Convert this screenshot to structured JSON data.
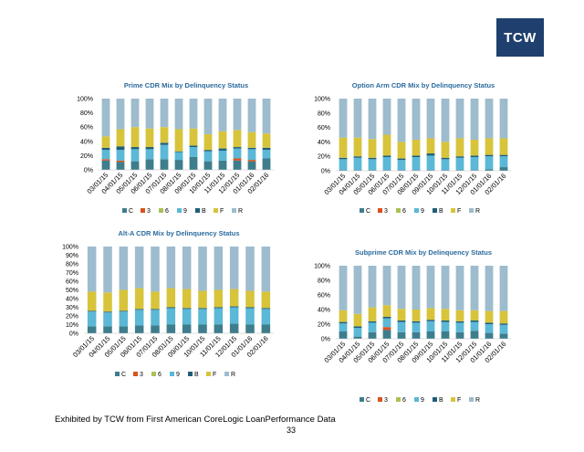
{
  "logo": "TCW",
  "footer": "Exhibited by TCW from First American CoreLogic LoanPerformance Data",
  "page_number": "33",
  "colors": {
    "C": "#3e7d8c",
    "3": "#d9531e",
    "6": "#a9c255",
    "9": "#5bb8d6",
    "B": "#1e5e78",
    "F": "#d7c43b",
    "R": "#9dbccd",
    "title": "#2b6b9e"
  },
  "chart_data": [
    {
      "type": "bar",
      "stacked": true,
      "title": "Prime CDR Mix by Delinquency Status",
      "categories": [
        "03/01/15",
        "04/01/15",
        "05/01/15",
        "06/01/15",
        "07/01/15",
        "08/01/15",
        "09/01/15",
        "10/01/15",
        "11/01/15",
        "12/01/15",
        "01/01/16",
        "02/01/16"
      ],
      "ylim": [
        0,
        100
      ],
      "yticks": [
        "0%",
        "20%",
        "40%",
        "60%",
        "80%",
        "100%"
      ],
      "legend": [
        "C",
        "3",
        "6",
        "9",
        "B",
        "F",
        "R"
      ],
      "series": [
        {
          "name": "C",
          "values": [
            13,
            11,
            12,
            15,
            15,
            14,
            18,
            12,
            13,
            13,
            12,
            16
          ]
        },
        {
          "name": "3",
          "values": [
            2,
            2,
            0,
            0,
            0,
            0,
            0,
            0,
            0,
            3,
            2,
            0
          ]
        },
        {
          "name": "6",
          "values": [
            0,
            0,
            0,
            0,
            0,
            0,
            0,
            0,
            0,
            0,
            0,
            0
          ]
        },
        {
          "name": "9",
          "values": [
            13,
            15,
            17,
            14,
            20,
            11,
            14,
            14,
            14,
            14,
            15,
            12
          ]
        },
        {
          "name": "B",
          "values": [
            3,
            5,
            3,
            3,
            3,
            1,
            2,
            2,
            3,
            2,
            2,
            3
          ]
        },
        {
          "name": "F",
          "values": [
            16,
            24,
            28,
            26,
            22,
            31,
            24,
            22,
            24,
            24,
            22,
            20
          ]
        },
        {
          "name": "R",
          "values": [
            53,
            43,
            40,
            42,
            40,
            43,
            42,
            50,
            46,
            44,
            47,
            49
          ]
        }
      ]
    },
    {
      "type": "bar",
      "stacked": true,
      "title": "Option Arm CDR Mix by Delinquency Status",
      "categories": [
        "03/01/15",
        "04/01/15",
        "05/01/15",
        "06/01/15",
        "07/01/15",
        "08/01/15",
        "09/01/15",
        "10/01/15",
        "11/01/15",
        "12/01/15",
        "01/01/16",
        "02/01/16"
      ],
      "ylim": [
        0,
        100
      ],
      "yticks": [
        "0%",
        "20%",
        "40%",
        "60%",
        "80%",
        "100%"
      ],
      "legend": [
        "C",
        "3",
        "6",
        "9",
        "B",
        "F",
        "R"
      ],
      "series": [
        {
          "name": "C",
          "values": [
            1,
            1,
            1,
            1,
            1,
            1,
            1,
            1,
            1,
            1,
            2,
            5
          ]
        },
        {
          "name": "3",
          "values": [
            0,
            0,
            0,
            0,
            0,
            0,
            0,
            0,
            0,
            0,
            0,
            0
          ]
        },
        {
          "name": "6",
          "values": [
            0,
            0,
            0,
            0,
            0,
            0,
            0,
            0,
            0,
            0,
            0,
            0
          ]
        },
        {
          "name": "9",
          "values": [
            15,
            17,
            15,
            18,
            14,
            18,
            20,
            15,
            17,
            18,
            18,
            15
          ]
        },
        {
          "name": "B",
          "values": [
            2,
            2,
            2,
            2,
            2,
            2,
            3,
            2,
            2,
            2,
            2,
            2
          ]
        },
        {
          "name": "F",
          "values": [
            28,
            26,
            26,
            29,
            23,
            22,
            21,
            22,
            25,
            22,
            23,
            23
          ]
        },
        {
          "name": "R",
          "values": [
            54,
            54,
            56,
            50,
            60,
            57,
            55,
            60,
            55,
            57,
            55,
            55
          ]
        }
      ]
    },
    {
      "type": "bar",
      "stacked": true,
      "title": "Alt-A CDR Mix by Delinquency Status",
      "categories": [
        "03/01/15",
        "04/01/15",
        "05/01/15",
        "06/01/15",
        "07/01/15",
        "08/01/15",
        "09/01/15",
        "10/01/15",
        "11/01/15",
        "12/01/15",
        "01/01/16",
        "02/01/16"
      ],
      "ylim": [
        0,
        100
      ],
      "yticks": [
        "0%",
        "10%",
        "20%",
        "30%",
        "40%",
        "50%",
        "60%",
        "70%",
        "80%",
        "90%",
        "100%"
      ],
      "legend": [
        "C",
        "3",
        "6",
        "9",
        "B",
        "F",
        "R"
      ],
      "series": [
        {
          "name": "C",
          "values": [
            8,
            8,
            8,
            9,
            9,
            10,
            10,
            10,
            10,
            11,
            10,
            10
          ]
        },
        {
          "name": "3",
          "values": [
            0,
            0,
            0,
            0,
            0,
            0,
            0,
            0,
            0,
            0,
            0,
            0
          ]
        },
        {
          "name": "6",
          "values": [
            0,
            0,
            0,
            0,
            0,
            0,
            0,
            0,
            0,
            0,
            0,
            0
          ]
        },
        {
          "name": "9",
          "values": [
            17,
            16,
            17,
            18,
            18,
            19,
            18,
            18,
            19,
            19,
            19,
            18
          ]
        },
        {
          "name": "B",
          "values": [
            1,
            1,
            1,
            1,
            1,
            1,
            1,
            1,
            1,
            1,
            1,
            1
          ]
        },
        {
          "name": "F",
          "values": [
            22,
            22,
            24,
            24,
            20,
            22,
            22,
            20,
            20,
            20,
            19,
            19
          ]
        },
        {
          "name": "R",
          "values": [
            52,
            53,
            50,
            48,
            52,
            48,
            49,
            51,
            50,
            49,
            51,
            52
          ]
        }
      ]
    },
    {
      "type": "bar",
      "stacked": true,
      "title": "Subprime CDR Mix by Delinquency Status",
      "categories": [
        "03/01/15",
        "04/01/15",
        "05/01/15",
        "06/01/15",
        "07/01/15",
        "08/01/15",
        "09/01/15",
        "10/01/15",
        "11/01/15",
        "12/01/15",
        "01/01/16",
        "02/01/16"
      ],
      "ylim": [
        0,
        100
      ],
      "yticks": [
        "0%",
        "20%",
        "40%",
        "60%",
        "80%",
        "100%"
      ],
      "legend": [
        "C",
        "3",
        "6",
        "9",
        "B",
        "F",
        "R"
      ],
      "series": [
        {
          "name": "C",
          "values": [
            10,
            3,
            9,
            12,
            9,
            9,
            10,
            10,
            9,
            11,
            8,
            7
          ]
        },
        {
          "name": "3",
          "values": [
            0,
            0,
            0,
            4,
            0,
            0,
            0,
            0,
            0,
            0,
            0,
            0
          ]
        },
        {
          "name": "6",
          "values": [
            0,
            0,
            0,
            0,
            0,
            0,
            0,
            0,
            0,
            0,
            0,
            0
          ]
        },
        {
          "name": "9",
          "values": [
            11,
            12,
            13,
            12,
            14,
            13,
            14,
            13,
            13,
            12,
            12,
            12
          ]
        },
        {
          "name": "B",
          "values": [
            2,
            2,
            2,
            2,
            2,
            2,
            2,
            2,
            2,
            2,
            2,
            2
          ]
        },
        {
          "name": "F",
          "values": [
            16,
            17,
            19,
            16,
            16,
            16,
            16,
            16,
            15,
            14,
            16,
            17
          ]
        },
        {
          "name": "R",
          "values": [
            61,
            66,
            57,
            54,
            59,
            60,
            58,
            59,
            61,
            61,
            62,
            62
          ]
        }
      ]
    }
  ]
}
